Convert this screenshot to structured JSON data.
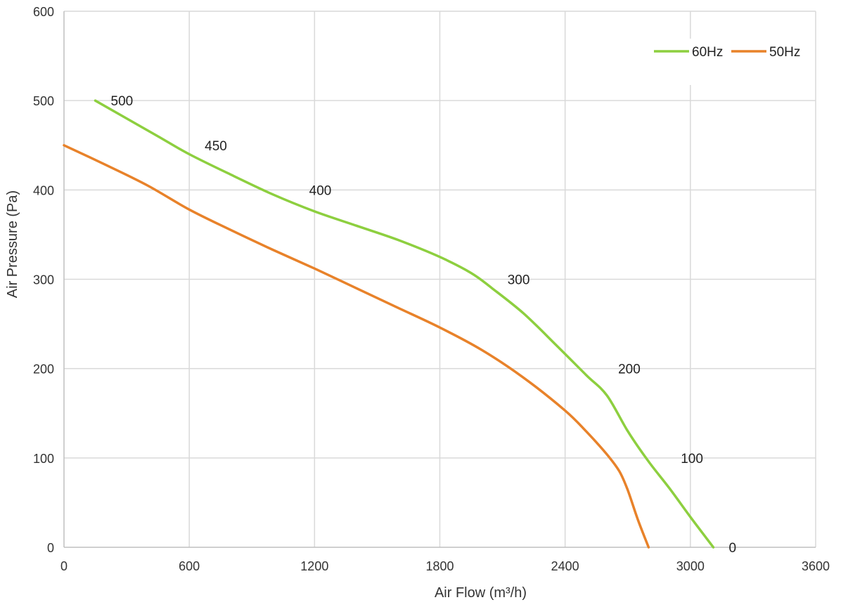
{
  "chart_data": {
    "type": "line",
    "xlabel": "Air Flow  (m³/h)",
    "ylabel": "Air Pressure  (Pa)",
    "xlim": [
      0,
      3600
    ],
    "ylim": [
      0,
      600
    ],
    "xticks": [
      0,
      600,
      1200,
      1800,
      2400,
      3000,
      3600
    ],
    "yticks": [
      0,
      100,
      200,
      300,
      400,
      500,
      600
    ],
    "grid": true,
    "legend_position": "top-right",
    "series": [
      {
        "name": "60Hz",
        "color": "#8dcf3f",
        "points": [
          [
            150,
            500
          ],
          [
            300,
            480
          ],
          [
            450,
            460
          ],
          [
            600,
            440
          ],
          [
            800,
            417
          ],
          [
            1000,
            395
          ],
          [
            1200,
            376
          ],
          [
            1400,
            360
          ],
          [
            1600,
            344
          ],
          [
            1800,
            325
          ],
          [
            1950,
            307
          ],
          [
            2050,
            290
          ],
          [
            2200,
            262
          ],
          [
            2350,
            228
          ],
          [
            2500,
            193
          ],
          [
            2600,
            170
          ],
          [
            2700,
            130
          ],
          [
            2800,
            96
          ],
          [
            2900,
            66
          ],
          [
            3000,
            34
          ],
          [
            3110,
            0
          ]
        ],
        "labels": [
          {
            "x": 150,
            "y": 500,
            "text": "500"
          },
          {
            "x": 600,
            "y": 450,
            "text": "450"
          },
          {
            "x": 1100,
            "y": 400,
            "text": "400"
          },
          {
            "x": 2050,
            "y": 300,
            "text": "300"
          },
          {
            "x": 2580,
            "y": 200,
            "text": "200"
          },
          {
            "x": 2880,
            "y": 100,
            "text": "100"
          },
          {
            "x": 3110,
            "y": 0,
            "text": "0"
          }
        ]
      },
      {
        "name": "50Hz",
        "color": "#e8822a",
        "points": [
          [
            0,
            450
          ],
          [
            200,
            428
          ],
          [
            400,
            405
          ],
          [
            600,
            378
          ],
          [
            800,
            355
          ],
          [
            1000,
            333
          ],
          [
            1200,
            312
          ],
          [
            1400,
            290
          ],
          [
            1600,
            268
          ],
          [
            1800,
            246
          ],
          [
            2000,
            221
          ],
          [
            2200,
            190
          ],
          [
            2400,
            153
          ],
          [
            2500,
            130
          ],
          [
            2600,
            104
          ],
          [
            2660,
            85
          ],
          [
            2700,
            64
          ],
          [
            2750,
            30
          ],
          [
            2800,
            0
          ]
        ]
      }
    ]
  }
}
